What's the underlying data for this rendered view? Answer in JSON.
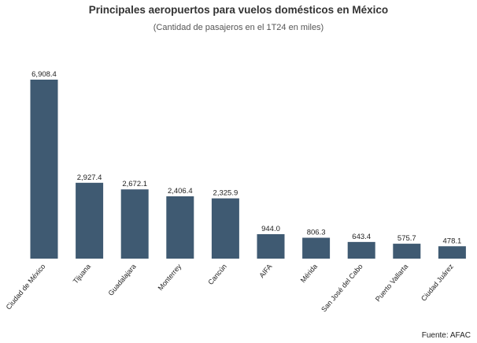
{
  "chart_data": {
    "type": "bar",
    "title": "Principales aeropuertos para vuelos domésticos en México",
    "subtitle": "(Cantidad de pasajeros en el 1T24 en miles)",
    "categories": [
      "Ciudad de México",
      "Tijuana",
      "Guadalajara",
      "Monterrey",
      "Cancún",
      "AIFA",
      "Mérida",
      "San José del Cabo",
      "Puerto Vallarta",
      "Ciudad Juárez"
    ],
    "values": [
      6908.4,
      2927.4,
      2672.1,
      2406.4,
      2325.9,
      944.0,
      806.3,
      643.4,
      575.7,
      478.1
    ],
    "value_labels": [
      "6,908.4",
      "2,927.4",
      "2,672.1",
      "2,406.4",
      "2,325.9",
      "944.0",
      "806.3",
      "643.4",
      "575.7",
      "478.1"
    ],
    "xlabel": "",
    "ylabel": "",
    "ylim": [
      0,
      6908.4
    ],
    "grid": false,
    "bar_color": "#3f5a72",
    "source": "Fuente: AFAC"
  }
}
